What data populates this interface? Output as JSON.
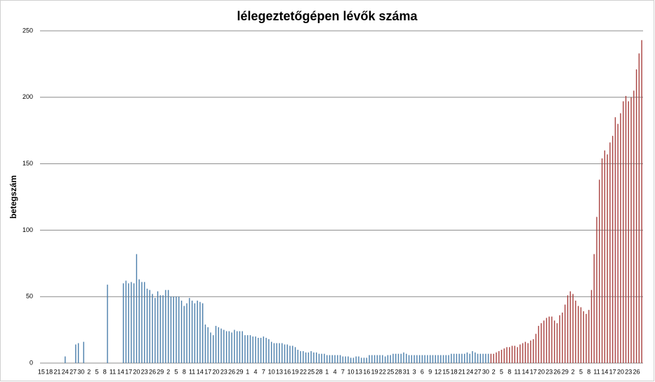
{
  "chart_data": {
    "type": "bar",
    "title": "lélegeztetőgépen lévők száma",
    "y_label": "betegszám",
    "categories": [
      "15",
      null,
      null,
      "18",
      null,
      null,
      "21",
      null,
      null,
      "24",
      null,
      null,
      "27",
      null,
      null,
      "30",
      null,
      null,
      "2",
      null,
      null,
      "5",
      null,
      null,
      "8",
      null,
      null,
      "11",
      null,
      null,
      "14",
      null,
      null,
      "17",
      null,
      null,
      "20",
      null,
      null,
      "23",
      null,
      null,
      "26",
      null,
      null,
      "29",
      null,
      null,
      "2",
      null,
      null,
      "5",
      null,
      null,
      "8",
      null,
      null,
      "11",
      null,
      null,
      "14",
      null,
      null,
      "17",
      null,
      null,
      "20",
      null,
      null,
      "23",
      null,
      null,
      "26",
      null,
      null,
      "29",
      null,
      null,
      "1",
      null,
      null,
      "4",
      null,
      null,
      "7",
      null,
      null,
      "10",
      null,
      null,
      "13",
      null,
      null,
      "16",
      null,
      null,
      "19",
      null,
      null,
      "22",
      null,
      null,
      "25",
      null,
      null,
      "28",
      null,
      null,
      "1",
      null,
      null,
      "4",
      null,
      null,
      "7",
      null,
      null,
      "10",
      null,
      null,
      "13",
      null,
      null,
      "16",
      null,
      null,
      "19",
      null,
      null,
      "22",
      null,
      null,
      "25",
      null,
      null,
      "28",
      null,
      null,
      "31",
      null,
      null,
      "3",
      null,
      null,
      "6",
      null,
      null,
      "9",
      null,
      null,
      "12",
      null,
      null,
      "15",
      null,
      null,
      "18",
      null,
      null,
      "21",
      null,
      null,
      "24",
      null,
      null,
      "27",
      null,
      null,
      "30",
      null,
      null,
      "2",
      null,
      null,
      "5",
      null,
      null,
      "8",
      null,
      null,
      "11",
      null,
      null,
      "14",
      null,
      null,
      "17",
      null,
      null,
      "20",
      null,
      null,
      "23",
      null,
      null,
      "26",
      null,
      null,
      "29",
      null,
      null,
      "2",
      null,
      null,
      "5",
      null,
      null,
      "8",
      null,
      null,
      "11",
      null,
      null,
      "14",
      null,
      null,
      "17",
      null,
      null,
      "20",
      null,
      null,
      "23",
      null,
      null,
      "26",
      null,
      null
    ],
    "series": [
      {
        "color": "#4a7eab",
        "values": [
          null,
          null,
          null,
          null,
          null,
          null,
          null,
          null,
          null,
          5,
          null,
          null,
          null,
          14,
          15,
          null,
          16,
          null,
          null,
          null,
          null,
          null,
          null,
          null,
          null,
          59,
          null,
          null,
          null,
          null,
          null,
          60,
          62,
          60,
          61,
          60,
          82,
          63,
          61,
          61,
          56,
          55,
          52,
          49,
          54,
          51,
          51,
          55,
          55,
          50,
          50,
          50,
          50,
          47,
          43,
          45,
          49,
          47,
          45,
          47,
          46,
          45,
          29,
          27,
          23,
          21,
          28,
          27,
          26,
          25,
          24,
          24,
          23,
          25,
          24,
          24,
          24,
          21,
          21,
          21,
          20,
          20,
          19,
          19,
          20,
          19,
          18,
          16,
          15,
          15,
          15,
          15,
          14,
          14,
          13,
          13,
          12,
          10,
          9,
          9,
          8,
          8,
          9,
          8,
          8,
          7,
          7,
          7,
          6,
          6,
          6,
          6,
          6,
          6,
          5,
          5,
          5,
          4,
          4,
          5,
          5,
          4,
          4,
          4,
          6,
          6,
          6,
          6,
          6,
          6,
          5,
          6,
          6,
          7,
          7,
          7,
          7,
          8,
          7,
          6,
          6,
          6,
          6,
          6,
          6,
          6,
          6,
          6,
          6,
          6,
          6,
          6,
          6,
          6,
          6,
          7,
          7,
          7,
          7,
          7,
          7,
          8,
          7,
          9,
          8,
          7,
          7,
          7,
          7,
          7,
          null,
          null,
          null,
          null,
          null,
          null,
          null,
          null,
          null,
          null,
          null,
          null,
          null,
          null,
          null,
          null,
          null,
          null,
          null,
          null,
          null,
          null,
          null,
          null,
          null,
          null,
          null,
          null,
          null,
          null,
          null,
          null,
          null,
          null,
          null,
          null,
          null,
          null,
          null,
          null,
          null,
          null,
          null,
          null,
          null,
          null,
          null,
          null,
          null,
          null,
          null,
          null,
          null,
          null,
          null,
          null,
          null,
          null
        ]
      },
      {
        "color": "#a8403e",
        "values": [
          null,
          null,
          null,
          null,
          null,
          null,
          null,
          null,
          null,
          null,
          null,
          null,
          null,
          null,
          null,
          null,
          null,
          null,
          null,
          null,
          null,
          null,
          null,
          null,
          null,
          null,
          null,
          null,
          null,
          null,
          null,
          null,
          null,
          null,
          null,
          null,
          null,
          null,
          null,
          null,
          null,
          null,
          null,
          null,
          null,
          null,
          null,
          null,
          null,
          null,
          null,
          null,
          null,
          null,
          null,
          null,
          null,
          null,
          null,
          null,
          null,
          null,
          null,
          null,
          null,
          null,
          null,
          null,
          null,
          null,
          null,
          null,
          null,
          null,
          null,
          null,
          null,
          null,
          null,
          null,
          null,
          null,
          null,
          null,
          null,
          null,
          null,
          null,
          null,
          null,
          null,
          null,
          null,
          null,
          null,
          null,
          null,
          null,
          null,
          null,
          null,
          null,
          null,
          null,
          null,
          null,
          null,
          null,
          null,
          null,
          null,
          null,
          null,
          null,
          null,
          null,
          null,
          null,
          null,
          null,
          null,
          null,
          null,
          null,
          null,
          null,
          null,
          null,
          null,
          null,
          null,
          null,
          null,
          null,
          null,
          null,
          null,
          null,
          null,
          null,
          null,
          null,
          null,
          null,
          null,
          null,
          null,
          null,
          null,
          null,
          null,
          null,
          null,
          null,
          null,
          null,
          null,
          null,
          null,
          null,
          null,
          null,
          null,
          null,
          null,
          null,
          null,
          null,
          null,
          null,
          7,
          7,
          8,
          9,
          10,
          11,
          12,
          12,
          13,
          13,
          12,
          14,
          15,
          16,
          15,
          17,
          18,
          22,
          28,
          30,
          32,
          34,
          35,
          35,
          32,
          30,
          36,
          38,
          44,
          51,
          54,
          52,
          47,
          43,
          42,
          39,
          37,
          40,
          55,
          82,
          110,
          138,
          154,
          160,
          157,
          166,
          171,
          185,
          180,
          188,
          197,
          201,
          197,
          200,
          205,
          221,
          233,
          243
        ]
      }
    ],
    "ylim": [
      0,
      250
    ],
    "yticks": [
      0,
      50,
      100,
      150,
      200,
      250
    ],
    "grid": true
  }
}
